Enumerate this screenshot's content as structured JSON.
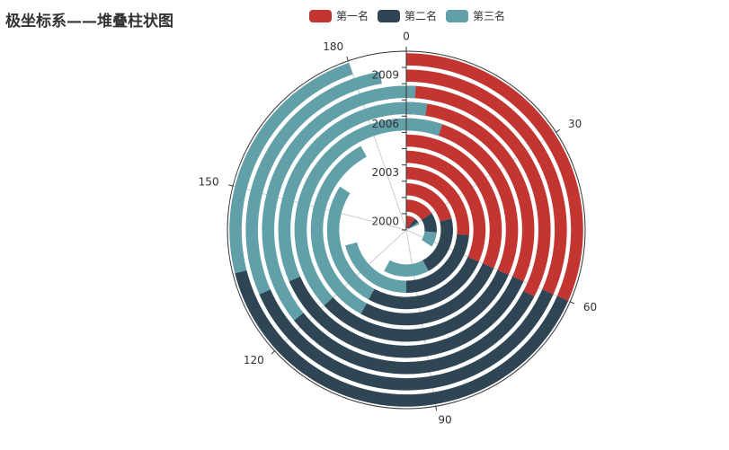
{
  "chart_data": {
    "type": "bar",
    "coordinate": "polar",
    "title": "极坐标系——堆叠柱状图",
    "legend": [
      "第一名",
      "第二名",
      "第三名"
    ],
    "legend_position": "top-center",
    "radius_axis": {
      "categories": [
        "2000",
        "2001",
        "2002",
        "2003",
        "2004",
        "2005",
        "2006",
        "2007",
        "2008",
        "2009",
        "2010"
      ],
      "labels_shown": [
        "2000",
        "2003",
        "2006",
        "2009"
      ]
    },
    "angle_axis": {
      "min": 0,
      "max": 190,
      "start_angle": 90,
      "clockwise": true,
      "ticks": [
        0,
        30,
        60,
        90,
        120,
        150,
        180
      ]
    },
    "series": [
      {
        "name": "第一名",
        "color": "#c23531",
        "values": [
          20,
          30,
          40,
          50,
          60,
          60,
          60,
          60,
          62,
          60,
          60
        ]
      },
      {
        "name": "第二名",
        "color": "#2f4554",
        "values": [
          10,
          20,
          40,
          45,
          50,
          50,
          60,
          70,
          60,
          70,
          75
        ]
      },
      {
        "name": "第三名",
        "color": "#61a0a8",
        "values": [
          5,
          15,
          30,
          40,
          50,
          65,
          80,
          65,
          70,
          55,
          45
        ]
      }
    ]
  }
}
